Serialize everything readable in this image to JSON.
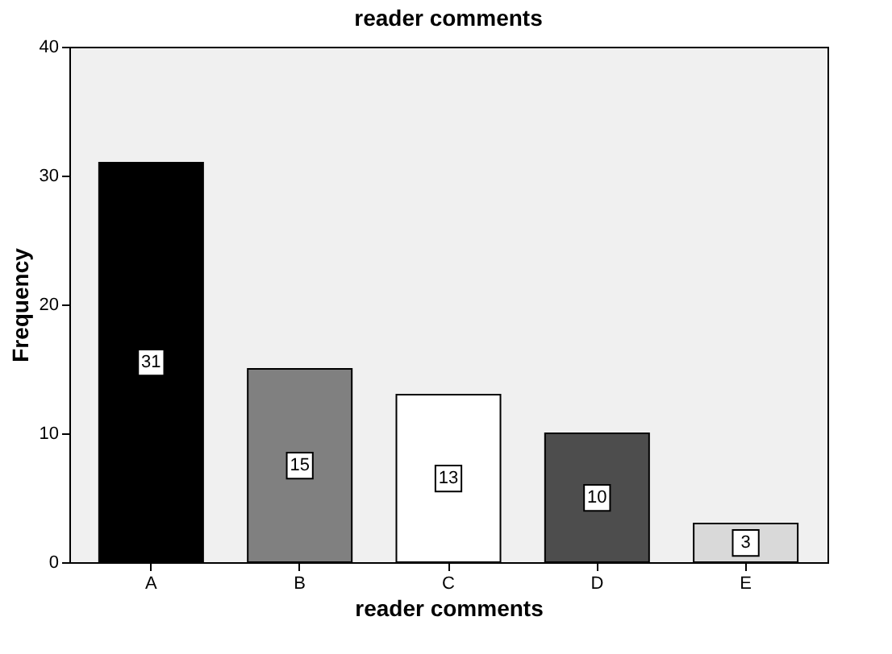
{
  "chart_data": {
    "type": "bar",
    "title": "reader comments",
    "xlabel": "reader comments",
    "ylabel": "Frequency",
    "categories": [
      "A",
      "B",
      "C",
      "D",
      "E"
    ],
    "values": [
      31,
      15,
      13,
      10,
      3
    ],
    "colors": [
      "#000000",
      "#808080",
      "#ffffff",
      "#4d4d4d",
      "#d9d9d9"
    ],
    "ylim": [
      0,
      40
    ],
    "yticks": [
      0,
      10,
      20,
      30,
      40
    ],
    "grid": false,
    "data_labels": true
  }
}
